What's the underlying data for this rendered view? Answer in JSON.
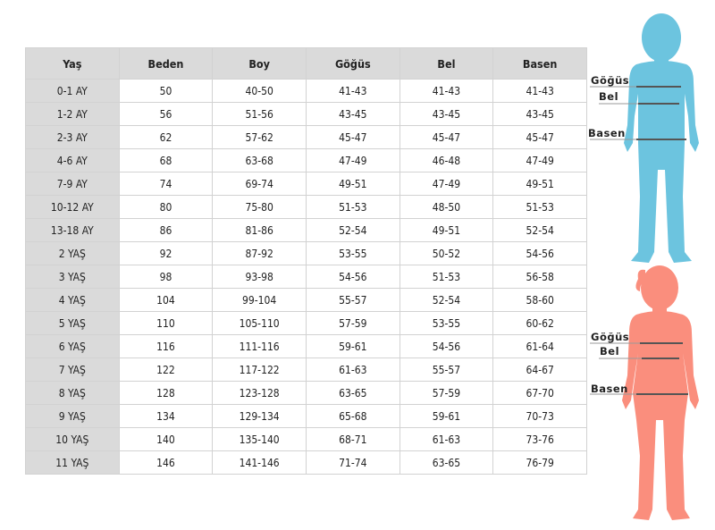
{
  "table": {
    "headers": [
      "Yaş",
      "Beden",
      "Boy",
      "Göğüs",
      "Bel",
      "Basen"
    ],
    "rows": [
      [
        "0-1 AY",
        "50",
        "40-50",
        "41-43",
        "41-43",
        "41-43"
      ],
      [
        "1-2 AY",
        "56",
        "51-56",
        "43-45",
        "43-45",
        "43-45"
      ],
      [
        "2-3 AY",
        "62",
        "57-62",
        "45-47",
        "45-47",
        "45-47"
      ],
      [
        "4-6 AY",
        "68",
        "63-68",
        "47-49",
        "46-48",
        "47-49"
      ],
      [
        "7-9 AY",
        "74",
        "69-74",
        "49-51",
        "47-49",
        "49-51"
      ],
      [
        "10-12 AY",
        "80",
        "75-80",
        "51-53",
        "48-50",
        "51-53"
      ],
      [
        "13-18 AY",
        "86",
        "81-86",
        "52-54",
        "49-51",
        "52-54"
      ],
      [
        "2 YAŞ",
        "92",
        "87-92",
        "53-55",
        "50-52",
        "54-56"
      ],
      [
        "3 YAŞ",
        "98",
        "93-98",
        "54-56",
        "51-53",
        "56-58"
      ],
      [
        "4 YAŞ",
        "104",
        "99-104",
        "55-57",
        "52-54",
        "58-60"
      ],
      [
        "5 YAŞ",
        "110",
        "105-110",
        "57-59",
        "53-55",
        "60-62"
      ],
      [
        "6 YAŞ",
        "116",
        "111-116",
        "59-61",
        "54-56",
        "61-64"
      ],
      [
        "7 YAŞ",
        "122",
        "117-122",
        "61-63",
        "55-57",
        "64-67"
      ],
      [
        "8 YAŞ",
        "128",
        "123-128",
        "63-65",
        "57-59",
        "67-70"
      ],
      [
        "9 YAŞ",
        "134",
        "129-134",
        "65-68",
        "59-61",
        "70-73"
      ],
      [
        "10 YAŞ",
        "140",
        "135-140",
        "68-71",
        "61-63",
        "73-76"
      ],
      [
        "11 YAŞ",
        "146",
        "141-146",
        "71-74",
        "63-65",
        "76-79"
      ]
    ]
  },
  "figures": {
    "boy": {
      "color": "#6cc4df",
      "labels": {
        "chest": "Göğüs",
        "waist": "Bel",
        "hip": "Basen"
      }
    },
    "girl": {
      "color": "#fa8e7d",
      "labels": {
        "chest": "Göğüs",
        "waist": "Bel",
        "hip": "Basen"
      }
    }
  }
}
